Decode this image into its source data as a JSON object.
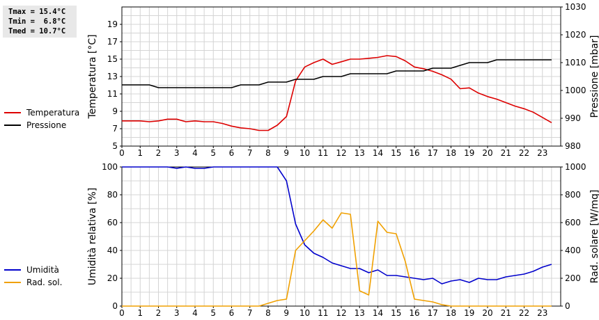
{
  "stats": {
    "tmax": "Tmax = 15.4°C",
    "tmin": "Tmin =  6.8°C",
    "tmed": "Tmed = 10.7°C"
  },
  "legend_top": [
    {
      "label": "Temperatura",
      "color": "#dd0000"
    },
    {
      "label": "Pressione",
      "color": "#000000"
    }
  ],
  "legend_bottom": [
    {
      "label": "Umidità",
      "color": "#0000cc"
    },
    {
      "label": "Rad. sol.",
      "color": "#f0a000"
    }
  ],
  "chart_data": [
    {
      "type": "line",
      "ylabel": "Temperatura [°C]",
      "y2label": "Pressione [mbar]",
      "xlim": [
        0,
        24
      ],
      "ylim": [
        5,
        21
      ],
      "y2lim": [
        980,
        1030
      ],
      "xticks": [
        "0",
        "1",
        "2",
        "3",
        "4",
        "5",
        "6",
        "7",
        "8",
        "9",
        "10",
        "11",
        "12",
        "13",
        "14",
        "15",
        "16",
        "17",
        "18",
        "19",
        "20",
        "21",
        "22",
        "23"
      ],
      "yticks": [
        "5",
        "7",
        "9",
        "11",
        "13",
        "15",
        "17",
        "19"
      ],
      "y2ticks": [
        "980",
        "990",
        "1000",
        "1010",
        "1020",
        "1030"
      ],
      "grid": true,
      "series": [
        {
          "name": "Temperatura",
          "color": "#dd0000",
          "axis": "left",
          "x": [
            0,
            0.5,
            1,
            1.5,
            2,
            2.5,
            3,
            3.5,
            4,
            4.5,
            5,
            5.5,
            6,
            6.5,
            7,
            7.5,
            8,
            8.5,
            9,
            9.5,
            10,
            10.5,
            11,
            11.5,
            12,
            12.5,
            13,
            13.5,
            14,
            14.5,
            15,
            15.5,
            16,
            16.5,
            17,
            17.5,
            18,
            18.5,
            19,
            19.5,
            20,
            20.5,
            21,
            21.5,
            22,
            22.5,
            23,
            23.5
          ],
          "y": [
            7.9,
            7.9,
            7.9,
            7.8,
            7.9,
            8.1,
            8.1,
            7.8,
            7.9,
            7.8,
            7.8,
            7.6,
            7.3,
            7.1,
            7.0,
            6.8,
            6.8,
            7.4,
            8.4,
            12.5,
            14.1,
            14.6,
            15.0,
            14.4,
            14.7,
            15.0,
            15.0,
            15.1,
            15.2,
            15.4,
            15.3,
            14.8,
            14.1,
            13.9,
            13.6,
            13.2,
            12.7,
            11.6,
            11.7,
            11.1,
            10.7,
            10.4,
            10.0,
            9.6,
            9.3,
            8.9,
            8.3,
            7.7
          ]
        },
        {
          "name": "Pressione",
          "color": "#000000",
          "axis": "right",
          "x": [
            0,
            0.5,
            1,
            1.5,
            2,
            2.5,
            3,
            3.5,
            4,
            4.5,
            5,
            5.5,
            6,
            6.5,
            7,
            7.5,
            8,
            8.5,
            9,
            9.5,
            10,
            10.5,
            11,
            11.5,
            12,
            12.5,
            13,
            13.5,
            14,
            14.5,
            15,
            15.5,
            16,
            16.5,
            17,
            17.5,
            18,
            18.5,
            19,
            19.5,
            20,
            20.5,
            21,
            21.5,
            22,
            22.5,
            23,
            23.5
          ],
          "y": [
            1002,
            1002,
            1002,
            1002,
            1001,
            1001,
            1001,
            1001,
            1001,
            1001,
            1001,
            1001,
            1001,
            1002,
            1002,
            1002,
            1003,
            1003,
            1003,
            1004,
            1004,
            1004,
            1005,
            1005,
            1005,
            1006,
            1006,
            1006,
            1006,
            1006,
            1007,
            1007,
            1007,
            1007,
            1008,
            1008,
            1008,
            1009,
            1010,
            1010,
            1010,
            1011,
            1011,
            1011,
            1011,
            1011,
            1011,
            1011
          ]
        }
      ]
    },
    {
      "type": "line",
      "ylabel": "Umidità relativa [%]",
      "y2label": "Rad. solare [W/mq]",
      "xlim": [
        0,
        24
      ],
      "ylim": [
        0,
        100
      ],
      "y2lim": [
        0,
        1000
      ],
      "xticks": [
        "0",
        "1",
        "2",
        "3",
        "4",
        "5",
        "6",
        "7",
        "8",
        "9",
        "10",
        "11",
        "12",
        "13",
        "14",
        "15",
        "16",
        "17",
        "18",
        "19",
        "20",
        "21",
        "22",
        "23"
      ],
      "yticks": [
        "0",
        "20",
        "40",
        "60",
        "80",
        "100"
      ],
      "y2ticks": [
        "0",
        "200",
        "400",
        "600",
        "800",
        "1000"
      ],
      "grid": true,
      "series": [
        {
          "name": "Umidità",
          "color": "#0000cc",
          "axis": "left",
          "x": [
            0,
            0.5,
            1,
            1.5,
            2,
            2.5,
            3,
            3.5,
            4,
            4.5,
            5,
            5.5,
            6,
            6.5,
            7,
            7.5,
            8,
            8.5,
            9,
            9.5,
            10,
            10.5,
            11,
            11.5,
            12,
            12.5,
            13,
            13.5,
            14,
            14.5,
            15,
            15.5,
            16,
            16.5,
            17,
            17.5,
            18,
            18.5,
            19,
            19.5,
            20,
            20.5,
            21,
            21.5,
            22,
            22.5,
            23,
            23.5
          ],
          "y": [
            100,
            100,
            100,
            100,
            100,
            100,
            99,
            100,
            99,
            99,
            100,
            100,
            100,
            100,
            100,
            100,
            100,
            100,
            90,
            59,
            44,
            38,
            35,
            31,
            29,
            27,
            27,
            24,
            26,
            22,
            22,
            21,
            20,
            19,
            20,
            16,
            18,
            19,
            17,
            20,
            19,
            19,
            21,
            22,
            23,
            25,
            28,
            30
          ]
        },
        {
          "name": "Rad. sol.",
          "color": "#f0a000",
          "axis": "right",
          "x": [
            0,
            0.5,
            1,
            1.5,
            2,
            2.5,
            3,
            3.5,
            4,
            4.5,
            5,
            5.5,
            6,
            6.5,
            7,
            7.5,
            8,
            8.5,
            9,
            9.5,
            10,
            10.5,
            11,
            11.5,
            12,
            12.5,
            13,
            13.5,
            14,
            14.5,
            15,
            15.5,
            16,
            16.5,
            17,
            17.5,
            18,
            18.5,
            19,
            19.5,
            20,
            20.5,
            21,
            21.5,
            22,
            22.5,
            23,
            23.5
          ],
          "y": [
            0,
            0,
            0,
            0,
            0,
            0,
            0,
            0,
            0,
            0,
            0,
            0,
            0,
            0,
            0,
            0,
            20,
            40,
            50,
            400,
            470,
            540,
            620,
            560,
            670,
            660,
            110,
            80,
            610,
            530,
            520,
            320,
            50,
            40,
            30,
            10,
            0,
            0,
            0,
            0,
            0,
            0,
            0,
            0,
            0,
            0,
            0,
            0
          ]
        }
      ]
    }
  ]
}
